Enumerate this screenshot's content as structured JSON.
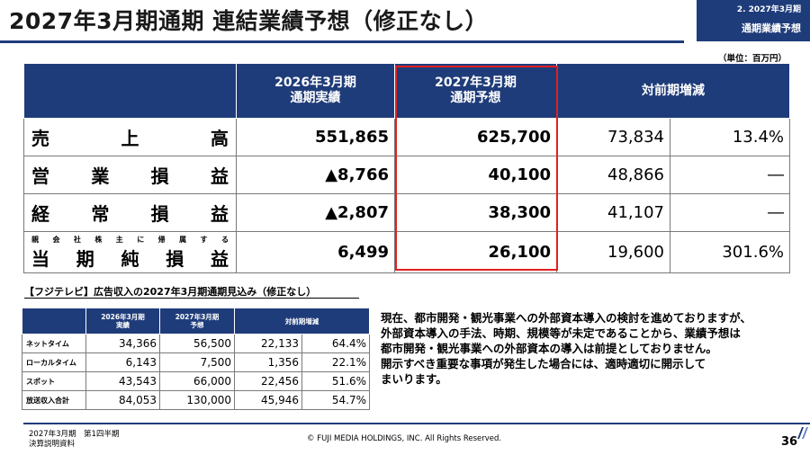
{
  "header": {
    "title": "2027年3月期通期 連結業績予想（修正なし）",
    "section_line1": "2.  2027年3月期",
    "section_line2": "通期業績予想"
  },
  "unit": "（単位：百万円）",
  "main_table": {
    "headers": {
      "actual": [
        "2026年3月期",
        "通期実績"
      ],
      "forecast": [
        "2027年3月期",
        "通期予想"
      ],
      "change": "対前期増減"
    },
    "rows": [
      {
        "label_chars": [
          "売",
          "上",
          "高"
        ],
        "actual": "551,865",
        "forecast": "625,700",
        "diff": "73,834",
        "pct": "13.4%"
      },
      {
        "label_chars": [
          "営",
          "業",
          "損",
          "益"
        ],
        "actual": "▲8,766",
        "forecast": "40,100",
        "diff": "48,866",
        "pct": "―"
      },
      {
        "label_chars": [
          "経",
          "常",
          "損",
          "益"
        ],
        "actual": "▲2,807",
        "forecast": "38,300",
        "diff": "41,107",
        "pct": "―"
      },
      {
        "label_small_chars": [
          "親",
          "会",
          "社",
          "株",
          "主",
          "に",
          "帰",
          "属",
          "す",
          "る"
        ],
        "label_chars": [
          "当",
          "期",
          "純",
          "損",
          "益"
        ],
        "actual": "6,499",
        "forecast": "26,100",
        "diff": "19,600",
        "pct": "301.6%"
      }
    ]
  },
  "ad_table": {
    "title": "【フジテレビ】広告収入の2027年3月期通期見込み（修正なし）",
    "headers": {
      "actual": [
        "2026年3月期",
        "実績"
      ],
      "forecast": [
        "2027年3月期",
        "予想"
      ],
      "change": "対前期増減"
    },
    "rows": [
      {
        "label": "ネットタイム",
        "actual": "34,366",
        "forecast": "56,500",
        "diff": "22,133",
        "pct": "64.4%"
      },
      {
        "label": "ローカルタイム",
        "actual": "6,143",
        "forecast": "7,500",
        "diff": "1,356",
        "pct": "22.1%"
      },
      {
        "label": "スポット",
        "actual": "43,543",
        "forecast": "66,000",
        "diff": "22,456",
        "pct": "51.6%"
      },
      {
        "label": "放送収入合計",
        "actual": "84,053",
        "forecast": "130,000",
        "diff": "45,946",
        "pct": "54.7%"
      }
    ]
  },
  "note_lines": [
    "現在、都市開発・観光事業への外部資本導入の検討を進めておりますが、",
    "外部資本導入の手法、時期、規模等が未定であることから、業績予想は",
    "都市開発・観光事業への外部資本の導入は前提としておりません。",
    "開示すべき重要な事項が発生した場合には、適時適切に開示して",
    "まいります。"
  ],
  "footer": {
    "left_line1": "2027年3月期　第1四半期",
    "left_line2": "決算説明資料",
    "copyright": "© FUJI MEDIA HOLDINGS, INC. All Rights Reserved.",
    "page": "36"
  },
  "colors": {
    "navy": "#1f3c7a",
    "highlight": "#e02020"
  }
}
